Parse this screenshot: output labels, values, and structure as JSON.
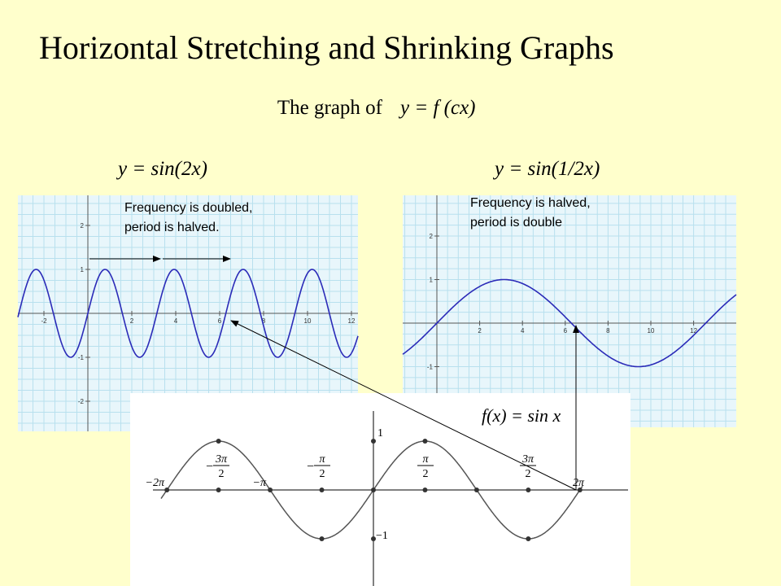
{
  "header": {
    "title": "Horizontal Stretching and Shrinking Graphs",
    "subtitle_prefix": "The graph of",
    "subtitle_formula": "y = f (cx)"
  },
  "left_graph": {
    "label": "y = sin(2x)",
    "note": [
      "Frequency is doubled,",
      "period is halved."
    ],
    "xticks": [
      -2,
      2,
      4,
      6,
      8,
      10,
      12
    ],
    "yticks": [
      2,
      1,
      -1,
      -2
    ]
  },
  "right_graph": {
    "label": "y = sin(1/2x)",
    "note": [
      "Frequency is halved,",
      "period is double"
    ],
    "xticks": [
      2,
      4,
      6,
      8,
      10,
      12
    ],
    "yticks": [
      2,
      1,
      -1
    ]
  },
  "base_graph": {
    "label": "f(x) = sin x",
    "x_labels": [
      {
        "sign": "−",
        "num": "2π",
        "den": ""
      },
      {
        "sign": "−",
        "num": "3π",
        "den": "2"
      },
      {
        "sign": "−",
        "num": "π",
        "den": ""
      },
      {
        "sign": "−",
        "num": "π",
        "den": "2"
      },
      {
        "sign": "",
        "num": "π",
        "den": "2"
      },
      {
        "sign": "",
        "num": "3π",
        "den": "2"
      },
      {
        "sign": "",
        "num": "2π",
        "den": ""
      }
    ],
    "y_labels": [
      "1",
      "−1"
    ]
  }
}
